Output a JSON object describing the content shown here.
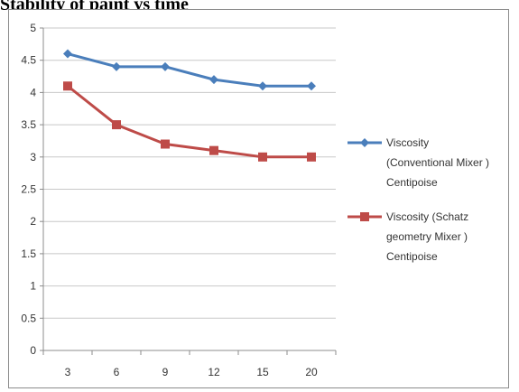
{
  "chart_data": {
    "type": "line",
    "title": "Stability of paint vs time",
    "xlabel": "",
    "ylabel": "",
    "categories": [
      "3",
      "6",
      "9",
      "12",
      "15",
      "20"
    ],
    "ylim": [
      0,
      5
    ],
    "yticks": [
      "0",
      "0.5",
      "1",
      "1.5",
      "2",
      "2.5",
      "3",
      "3.5",
      "4",
      "4.5",
      "5"
    ],
    "grid": true,
    "legend_position": "right",
    "series": [
      {
        "name": "Viscosity (Conventional Mixer ) Centipoise",
        "legend_lines": [
          "Viscosity",
          "(Conventional Mixer )",
          "Centipoise"
        ],
        "color": "#4a7ebb",
        "marker": "diamond",
        "values": [
          4.6,
          4.4,
          4.4,
          4.2,
          4.1,
          4.1
        ]
      },
      {
        "name": "Viscosity (Schatz geometry Mixer ) Centipoise",
        "legend_lines": [
          "Viscosity (Schatz",
          "geometry Mixer )",
          "Centipoise"
        ],
        "color": "#be4b48",
        "marker": "square",
        "values": [
          4.1,
          3.5,
          3.2,
          3.1,
          3.0,
          3.0
        ]
      }
    ]
  }
}
